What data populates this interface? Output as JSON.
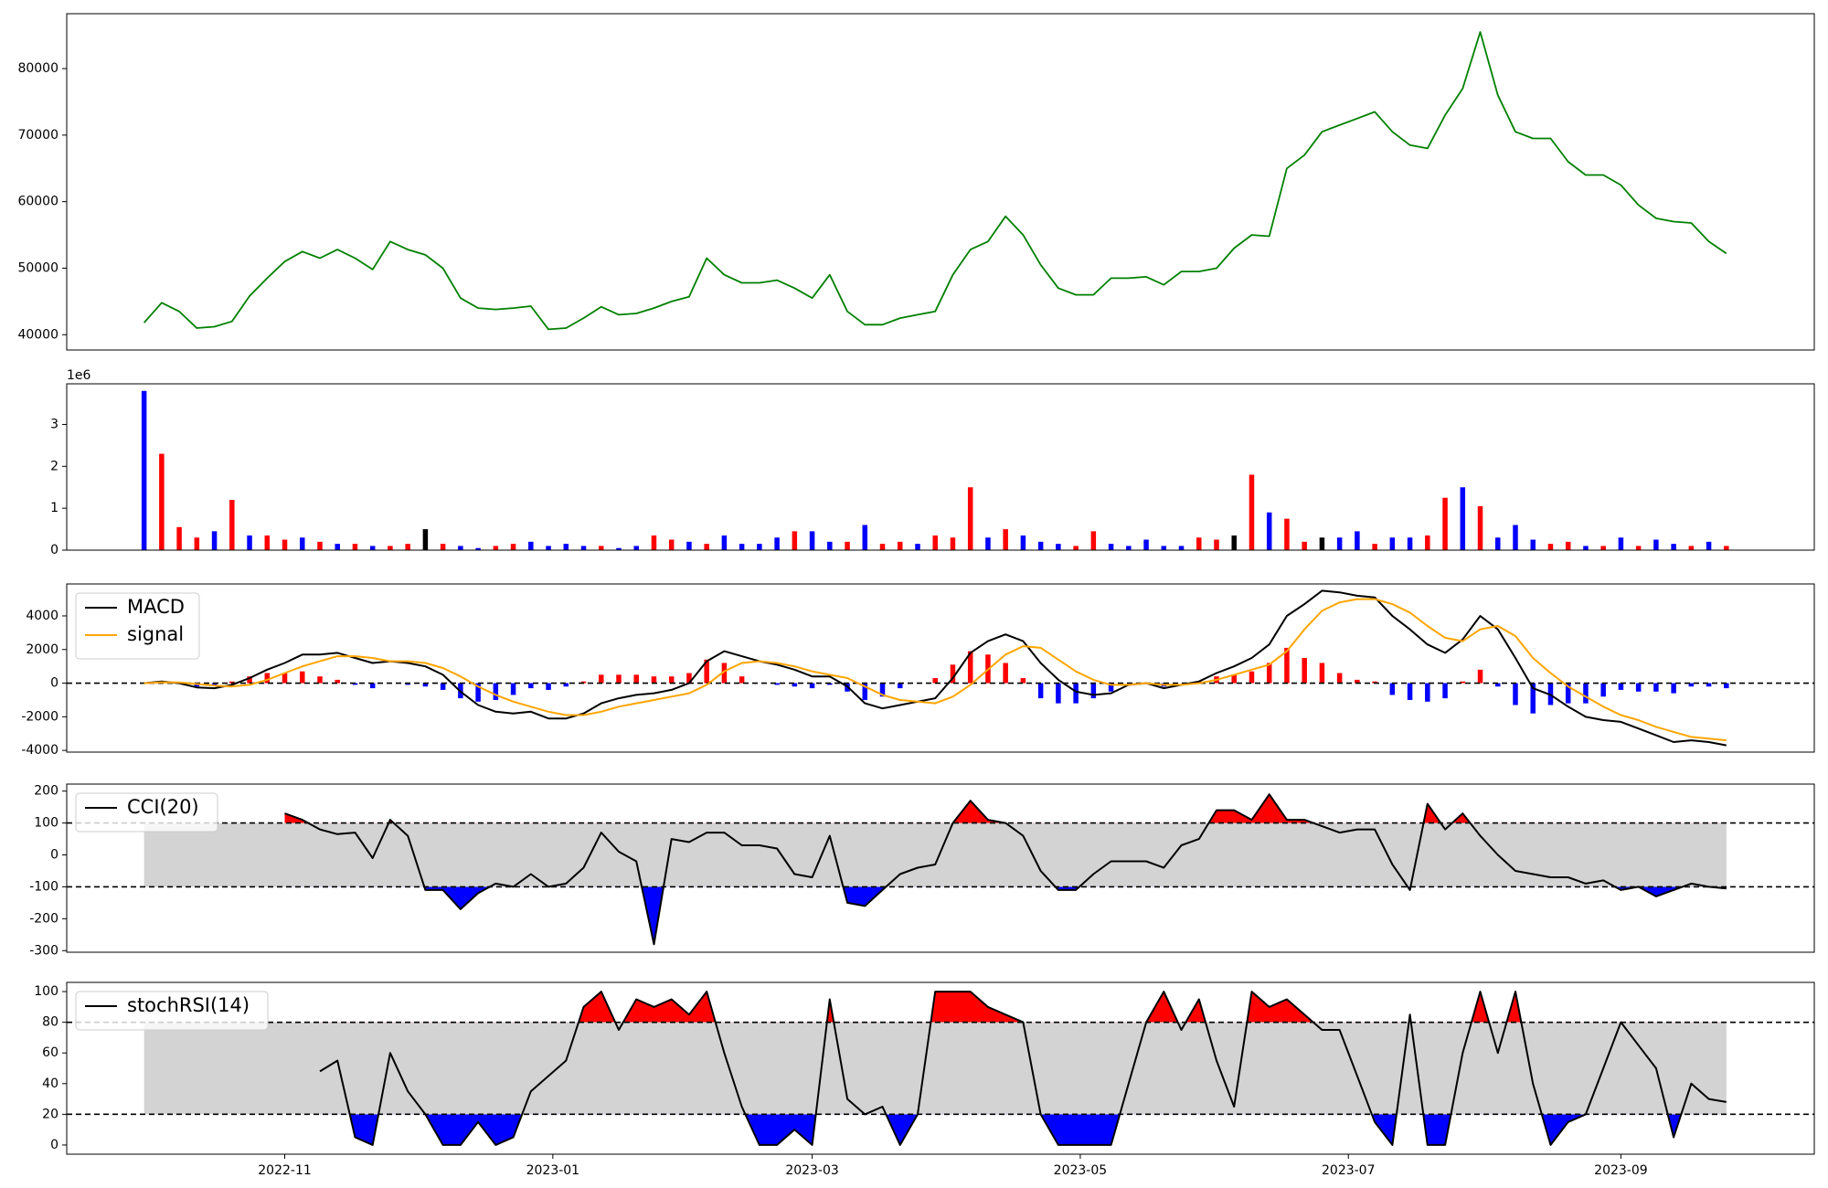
{
  "chart_data": [
    {
      "type": "line",
      "x": [
        29,
        33,
        37,
        41,
        45,
        49,
        53,
        57,
        61,
        65,
        69,
        73,
        77,
        81,
        85,
        89,
        93,
        97,
        101,
        105,
        109,
        113,
        117,
        121,
        125,
        129,
        133,
        137,
        141,
        145,
        149,
        153,
        157,
        161,
        165,
        169,
        173,
        177,
        181,
        185,
        189,
        193,
        197,
        201,
        205,
        209,
        213,
        217,
        221,
        225,
        229,
        233,
        237,
        241,
        245,
        249,
        253,
        257,
        261,
        265,
        269,
        273,
        277,
        281,
        285,
        289,
        293,
        297,
        301,
        305,
        309,
        313,
        317,
        321,
        325,
        329,
        333,
        337,
        341,
        345,
        349,
        353,
        357,
        361,
        365,
        369,
        373,
        377,
        381,
        385,
        389
      ],
      "xlim": [
        11.4,
        409
      ],
      "xticks": [
        {
          "value": 61,
          "label": "2022-11"
        },
        {
          "value": 122,
          "label": "2023-01"
        },
        {
          "value": 181,
          "label": "2023-03"
        },
        {
          "value": 242,
          "label": "2023-05"
        },
        {
          "value": 303,
          "label": "2023-07"
        },
        {
          "value": 365,
          "label": "2023-09"
        }
      ],
      "series": [
        {
          "color": "green",
          "values": [
            41800,
            44800,
            43500,
            41000,
            41200,
            42000,
            45800,
            48500,
            51000,
            52500,
            51500,
            52800,
            51500,
            49800,
            54000,
            52800,
            52000,
            50000,
            45500,
            44000,
            43800,
            44000,
            44300,
            40800,
            41000,
            42500,
            44200,
            43000,
            43200,
            44000,
            45000,
            45700,
            51500,
            49000,
            47800,
            47800,
            48200,
            47000,
            45500,
            49000,
            43500,
            41500,
            41500,
            42500,
            43000,
            43500,
            49000,
            52800,
            54000,
            57800,
            55000,
            50500,
            47000,
            46000,
            46000,
            48500,
            48500,
            48700,
            47500,
            49500,
            49500,
            50000,
            53000,
            55000,
            54800,
            65000,
            67000,
            70500,
            71500,
            72500,
            73500,
            70500,
            68500,
            68000,
            73000,
            77000,
            85500,
            76000,
            70500,
            69500,
            69500,
            66000,
            64000,
            64000,
            62500,
            59500,
            57500,
            57000,
            56800,
            54000,
            52200
          ]
        }
      ],
      "ylim": [
        37700,
        88250
      ],
      "yticks": [
        40000,
        50000,
        60000,
        70000,
        80000
      ]
    },
    {
      "type": "bar",
      "values": [
        3800000,
        2300000,
        550000,
        300000,
        450000,
        1200000,
        350000,
        350000,
        250000,
        300000,
        200000,
        150000,
        150000,
        100000,
        100000,
        150000,
        500000,
        150000,
        100000,
        50000,
        100000,
        150000,
        200000,
        100000,
        150000,
        100000,
        100000,
        50000,
        100000,
        350000,
        250000,
        200000,
        150000,
        350000,
        150000,
        150000,
        300000,
        450000,
        450000,
        200000,
        200000,
        600000,
        150000,
        200000,
        150000,
        350000,
        300000,
        1500000,
        300000,
        500000,
        350000,
        200000,
        150000,
        100000,
        450000,
        150000,
        100000,
        250000,
        100000,
        100000,
        300000,
        250000,
        350000,
        1800000,
        900000,
        750000,
        200000,
        300000,
        300000,
        450000,
        150000,
        300000,
        300000,
        350000,
        1250000,
        1500000,
        1050000,
        300000,
        600000,
        250000,
        150000,
        200000,
        100000,
        100000,
        300000,
        100000,
        250000,
        150000,
        100000,
        200000,
        100000
      ],
      "colors": [
        "blue",
        "red",
        "red",
        "red",
        "blue",
        "red",
        "blue",
        "red",
        "red",
        "blue",
        "red",
        "blue",
        "red",
        "blue",
        "red",
        "red",
        "black",
        "red",
        "blue",
        "blue",
        "red",
        "red",
        "blue",
        "blue",
        "blue",
        "blue",
        "red",
        "blue",
        "blue",
        "red",
        "red",
        "blue",
        "red",
        "blue",
        "blue",
        "blue",
        "blue",
        "red",
        "blue",
        "blue",
        "red",
        "blue",
        "red",
        "red",
        "blue",
        "red",
        "red",
        "red",
        "blue",
        "red",
        "blue",
        "blue",
        "blue",
        "red",
        "red",
        "blue",
        "blue",
        "blue",
        "blue",
        "blue",
        "red",
        "red",
        "black",
        "red",
        "blue",
        "red",
        "red",
        "black",
        "blue",
        "blue",
        "red",
        "blue",
        "blue",
        "red",
        "red",
        "blue",
        "red",
        "blue",
        "blue",
        "blue",
        "red",
        "red",
        "blue",
        "red",
        "blue",
        "red",
        "blue",
        "blue",
        "red",
        "blue",
        "red"
      ],
      "ylim": [
        0,
        3970000
      ],
      "yticks": [
        0,
        {
          "value": 1000000,
          "label": "1"
        },
        {
          "value": 2000000,
          "label": "2"
        },
        {
          "value": 3000000,
          "label": "3"
        }
      ],
      "y_offset_label": "1e6"
    },
    {
      "type": "macd",
      "series": [
        {
          "name": "MACD",
          "color": "black",
          "values": [
            0,
            100,
            0,
            -250,
            -300,
            -100,
            300,
            800,
            1200,
            1700,
            1700,
            1800,
            1500,
            1200,
            1300,
            1200,
            1000,
            500,
            -500,
            -1300,
            -1700,
            -1800,
            -1700,
            -2100,
            -2100,
            -1800,
            -1200,
            -900,
            -700,
            -600,
            -400,
            0,
            1300,
            1900,
            1600,
            1300,
            1100,
            800,
            400,
            400,
            -200,
            -1200,
            -1500,
            -1300,
            -1100,
            -900,
            300,
            1800,
            2500,
            2900,
            2500,
            1200,
            200,
            -500,
            -700,
            -600,
            -100,
            0,
            -300,
            -100,
            100,
            600,
            1000,
            1500,
            2300,
            4000,
            4700,
            5500,
            5400,
            5200,
            5100,
            4000,
            3200,
            2300,
            1800,
            2600,
            4000,
            3200,
            1500,
            -300,
            -700,
            -1400,
            -2000,
            -2200,
            -2300,
            -2700,
            -3100,
            -3500,
            -3400,
            -3500,
            -3700
          ]
        },
        {
          "name": "signal",
          "color": "orange",
          "values": [
            0,
            50,
            40,
            -50,
            -150,
            -200,
            -100,
            200,
            600,
            1000,
            1300,
            1600,
            1600,
            1500,
            1300,
            1300,
            1200,
            900,
            400,
            -200,
            -700,
            -1100,
            -1400,
            -1700,
            -1900,
            -1900,
            -1700,
            -1400,
            -1200,
            -1000,
            -800,
            -600,
            -100,
            700,
            1200,
            1300,
            1200,
            1000,
            700,
            500,
            300,
            -200,
            -700,
            -1000,
            -1100,
            -1200,
            -800,
            -100,
            800,
            1700,
            2200,
            2100,
            1400,
            700,
            200,
            -100,
            -100,
            0,
            -100,
            -100,
            0,
            200,
            500,
            800,
            1100,
            1900,
            3200,
            4300,
            4800,
            5000,
            5000,
            4700,
            4200,
            3400,
            2700,
            2500,
            3200,
            3400,
            2800,
            1500,
            600,
            -200,
            -800,
            -1400,
            -1900,
            -2200,
            -2600,
            -2900,
            -3200,
            -3300,
            -3400
          ]
        }
      ],
      "histogram": {
        "values": [
          0,
          50,
          -40,
          -200,
          -150,
          100,
          400,
          600,
          600,
          700,
          400,
          200,
          -100,
          -300,
          0,
          -100,
          -200,
          -400,
          -900,
          -1100,
          -1000,
          -700,
          -300,
          -400,
          -200,
          100,
          500,
          500,
          500,
          400,
          400,
          600,
          1400,
          1200,
          400,
          0,
          -100,
          -200,
          -300,
          -100,
          -500,
          -1000,
          -800,
          -300,
          0,
          300,
          1100,
          1900,
          1700,
          1200,
          300,
          -900,
          -1200,
          -1200,
          -900,
          -500,
          0,
          0,
          -200,
          0,
          100,
          400,
          500,
          700,
          1200,
          2100,
          1500,
          1200,
          600,
          200,
          100,
          -700,
          -1000,
          -1100,
          -900,
          100,
          800,
          -200,
          -1300,
          -1800,
          -1300,
          -1200,
          -1200,
          -800,
          -400,
          -500,
          -500,
          -600,
          -200,
          -200,
          -300
        ],
        "positive_color": "red",
        "negative_color": "blue"
      },
      "reference_line": 0,
      "ylim": [
        -4100,
        5900
      ],
      "yticks": [
        -4000,
        -2000,
        0,
        2000,
        4000
      ]
    },
    {
      "type": "band",
      "series": [
        {
          "name": "CCI(20)",
          "color": "black",
          "values": [
            null,
            null,
            null,
            null,
            null,
            null,
            null,
            null,
            130,
            110,
            80,
            65,
            70,
            -10,
            110,
            60,
            -110,
            -110,
            -170,
            -120,
            -90,
            -100,
            -60,
            -100,
            -90,
            -40,
            70,
            10,
            -20,
            -280,
            50,
            40,
            70,
            70,
            30,
            30,
            20,
            -60,
            -70,
            60,
            -150,
            -160,
            -110,
            -60,
            -40,
            -30,
            100,
            170,
            110,
            100,
            60,
            -50,
            -110,
            -110,
            -60,
            -20,
            -20,
            -20,
            -40,
            30,
            50,
            140,
            140,
            110,
            190,
            110,
            110,
            90,
            70,
            80,
            80,
            -30,
            -110,
            160,
            80,
            130,
            60,
            0,
            -50,
            -60,
            -70,
            -70,
            -90,
            -80,
            -110,
            -100,
            -130,
            -110,
            -90,
            -100,
            -105
          ]
        }
      ],
      "bands": [
        -100,
        100
      ],
      "band_color": "lightgray",
      "upper_color": "red",
      "lower_color": "blue",
      "ylim": [
        -305,
        222
      ],
      "yticks": [
        -300,
        -200,
        -100,
        0,
        100,
        200
      ]
    },
    {
      "type": "band",
      "series": [
        {
          "name": "stochRSI(14)",
          "color": "black",
          "values": [
            null,
            null,
            null,
            null,
            null,
            null,
            null,
            null,
            null,
            null,
            48,
            55,
            5,
            0,
            60,
            35,
            20,
            0,
            0,
            15,
            0,
            5,
            35,
            45,
            55,
            90,
            100,
            75,
            95,
            90,
            95,
            85,
            100,
            60,
            25,
            0,
            0,
            10,
            0,
            95,
            30,
            20,
            25,
            0,
            20,
            100,
            100,
            100,
            90,
            85,
            80,
            20,
            0,
            0,
            0,
            0,
            40,
            80,
            100,
            75,
            95,
            55,
            25,
            100,
            90,
            95,
            85,
            75,
            75,
            45,
            15,
            0,
            85,
            0,
            0,
            60,
            100,
            60,
            100,
            40,
            0,
            15,
            20,
            50,
            80,
            65,
            50,
            5,
            40,
            30,
            28
          ]
        }
      ],
      "bands": [
        20,
        80
      ],
      "band_color": "lightgray",
      "upper_color": "red",
      "lower_color": "blue",
      "ylim": [
        -6,
        106
      ],
      "yticks": [
        0,
        20,
        40,
        60,
        80,
        100
      ]
    }
  ]
}
